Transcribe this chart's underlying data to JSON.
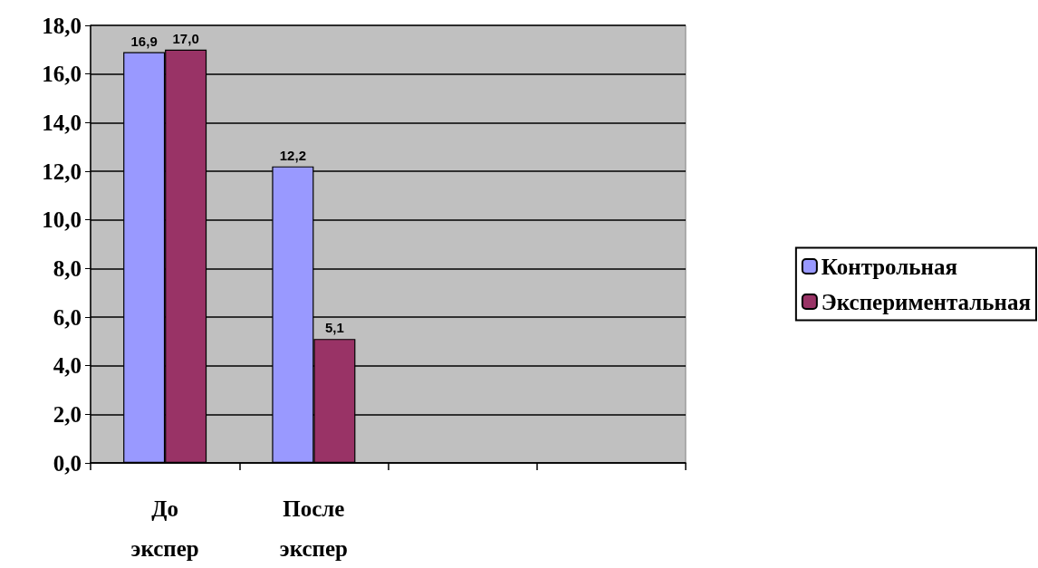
{
  "chart_data": {
    "type": "bar",
    "categories": [
      "До экспер",
      "После экспер",
      null,
      null
    ],
    "series": [
      {
        "name": "Контрольная",
        "color": "#9999ff",
        "values": [
          16.9,
          12.2,
          null,
          null
        ],
        "value_labels": [
          "16,9",
          "12,2",
          null,
          null
        ]
      },
      {
        "name": "Экспериментальная",
        "color": "#993366",
        "values": [
          17.0,
          5.1,
          null,
          null
        ],
        "value_labels": [
          "17,0",
          "5,1",
          null,
          null
        ]
      }
    ],
    "ylim": [
      0,
      18
    ],
    "yticks": [
      {
        "value": 0,
        "label": "0,0"
      },
      {
        "value": 2,
        "label": "2,0"
      },
      {
        "value": 4,
        "label": "4,0"
      },
      {
        "value": 6,
        "label": "6,0"
      },
      {
        "value": 8,
        "label": "8,0"
      },
      {
        "value": 10,
        "label": "10,0"
      },
      {
        "value": 12,
        "label": "12,0"
      },
      {
        "value": 14,
        "label": "14,0"
      },
      {
        "value": 16,
        "label": "16,0"
      },
      {
        "value": 18,
        "label": "18,0"
      }
    ],
    "grid": true,
    "legend": "right"
  }
}
